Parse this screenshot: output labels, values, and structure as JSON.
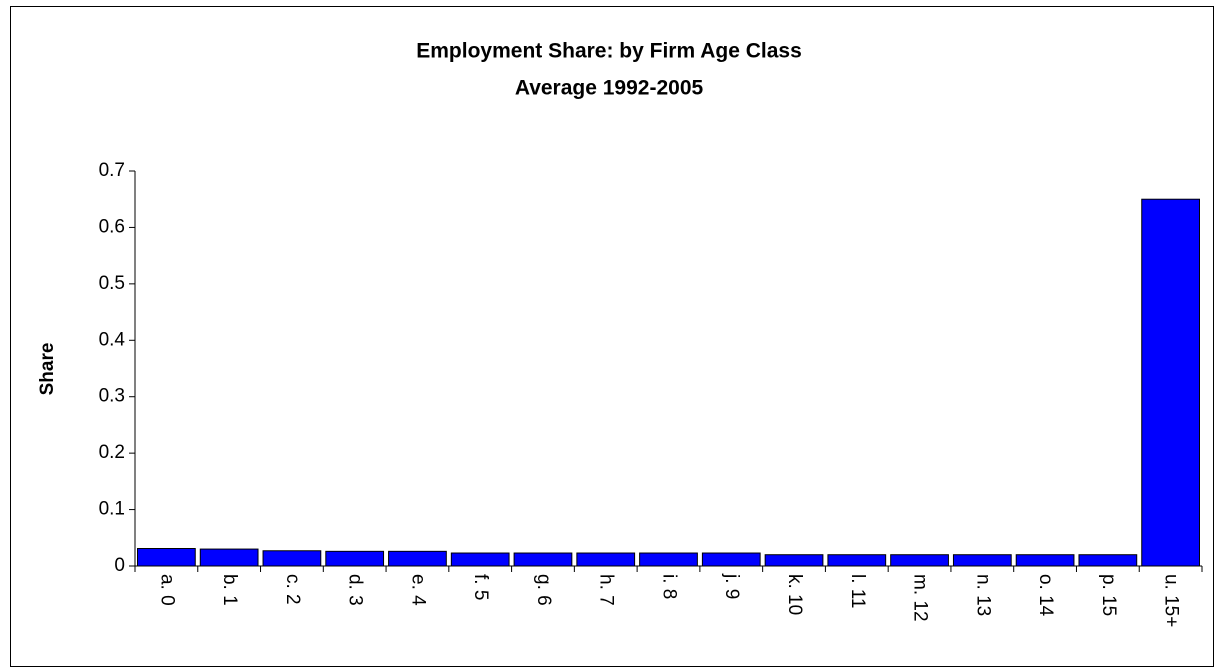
{
  "chart_data": {
    "type": "bar",
    "title": "Employment Share: by Firm Age Class",
    "subtitle": "Average 1992-2005",
    "y_label": "Share",
    "categories": [
      "a. 0",
      "b. 1",
      "c. 2",
      "d. 3",
      "e. 4",
      "f. 5",
      "g. 6",
      "h. 7",
      "i. 8",
      "j. 9",
      "k. 10",
      "l. 11",
      "m. 12",
      "n. 13",
      "o. 14",
      "p. 15",
      "u. 15+"
    ],
    "values": [
      0.031,
      0.03,
      0.027,
      0.026,
      0.026,
      0.023,
      0.023,
      0.023,
      0.023,
      0.023,
      0.02,
      0.02,
      0.02,
      0.02,
      0.02,
      0.02,
      0.65
    ],
    "color": "#0000ff",
    "ylim": [
      0,
      0.7
    ],
    "yticks": [
      0,
      0.1,
      0.2,
      0.3,
      0.4,
      0.5,
      0.6,
      0.7
    ],
    "grid": false
  }
}
